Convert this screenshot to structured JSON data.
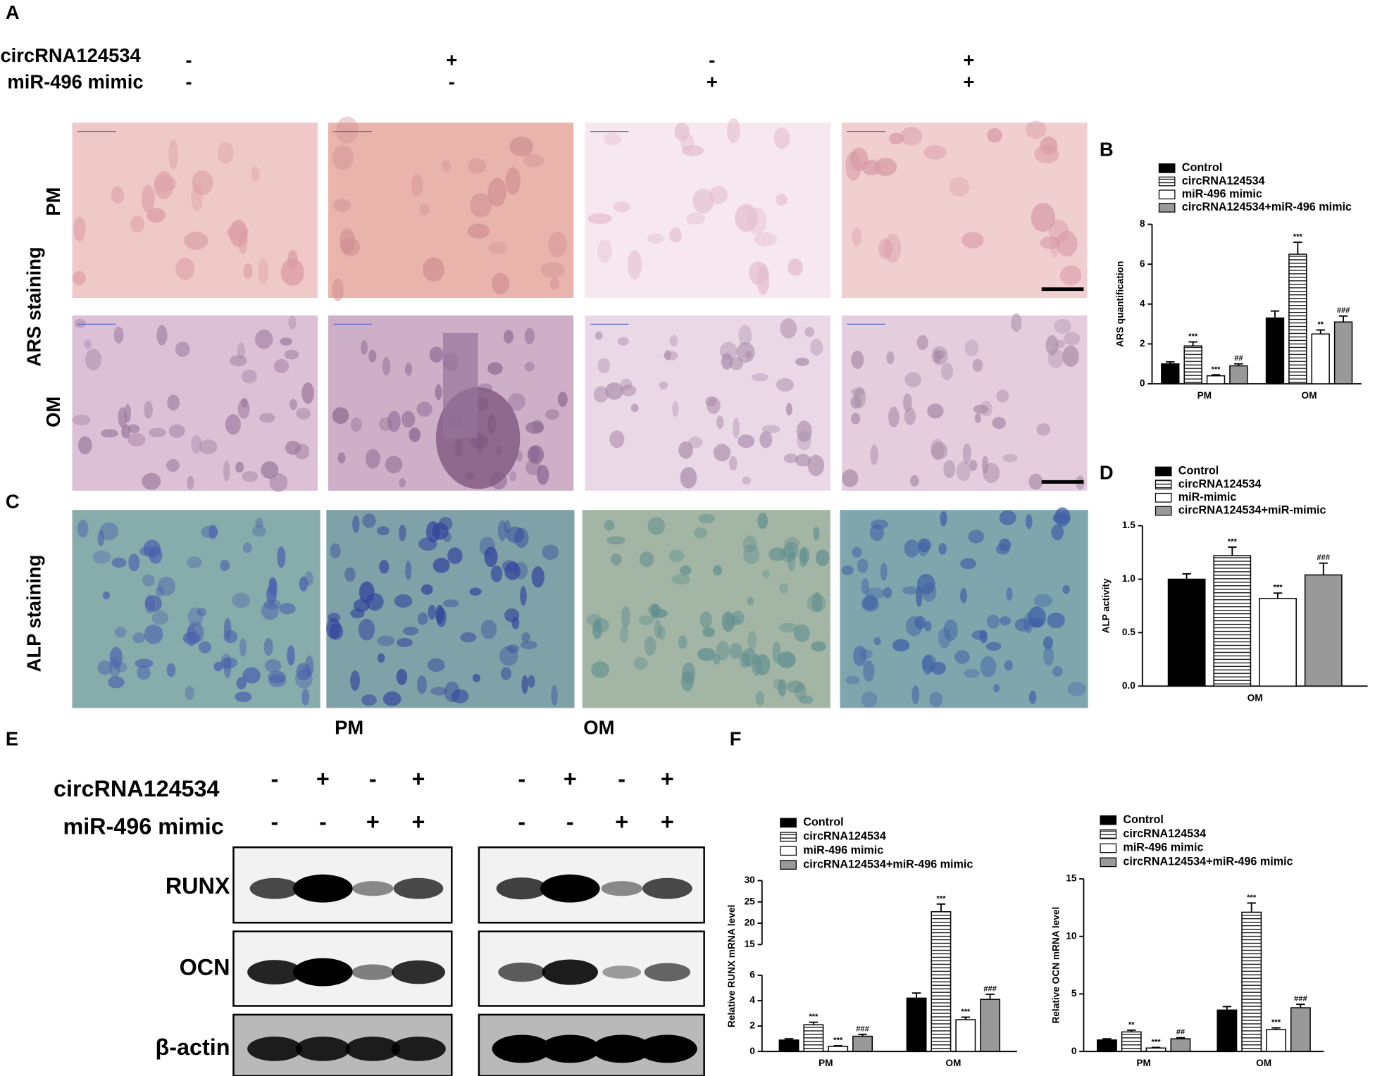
{
  "panel_letters": [
    "A",
    "B",
    "C",
    "D",
    "E",
    "F"
  ],
  "panel_a": {
    "labels": [
      "circRNA124534",
      "miR-496 mimic"
    ],
    "signs": [
      [
        "-",
        "+",
        "-",
        "+"
      ],
      [
        "-",
        "-",
        "+",
        "+"
      ]
    ],
    "stain": "ARS staining",
    "rows": [
      "PM",
      "OM"
    ]
  },
  "panel_c": {
    "stain": "ALP staining",
    "columns": [
      "PM",
      "OM"
    ]
  },
  "panel_e": {
    "labels": [
      "circRNA124534",
      "miR-496 mimic"
    ],
    "signs": [
      [
        "-",
        "+",
        "-",
        "+",
        "-",
        "+",
        "-",
        "+"
      ],
      [
        "-",
        "-",
        "+",
        "+",
        "-",
        "-",
        "+",
        "+"
      ]
    ],
    "blots": [
      "RUNX",
      "OCN",
      "β-actin"
    ]
  },
  "chart_data": [
    {
      "type": "bar",
      "ylabel": "ARS quantification",
      "categories": [
        "PM",
        "OM"
      ],
      "ylim": [
        0,
        8
      ],
      "yticks": [
        0,
        2,
        4,
        6,
        8
      ],
      "series": [
        {
          "name": "Control",
          "color": "#000000",
          "values": [
            1.0,
            3.3
          ],
          "errors": [
            0.1,
            0.35
          ]
        },
        {
          "name": "circRNA124534",
          "color": "#ffffff",
          "hatch": true,
          "values": [
            1.9,
            6.5
          ],
          "errors": [
            0.2,
            0.6
          ],
          "significance": [
            "***",
            "***"
          ]
        },
        {
          "name": "miR-496 mimic",
          "color": "#ffffff",
          "values": [
            0.4,
            2.5
          ],
          "errors": [
            0.05,
            0.2
          ],
          "significance": [
            "***",
            "**"
          ]
        },
        {
          "name": "circRNA124534+miR-496 mimic",
          "color": "#999999",
          "values": [
            0.9,
            3.1
          ],
          "errors": [
            0.1,
            0.3
          ],
          "significance": [
            "##",
            "###"
          ]
        }
      ]
    },
    {
      "type": "bar",
      "ylabel": "ALP activity",
      "categories": [
        "OM"
      ],
      "ylim": [
        0,
        1.5
      ],
      "yticks": [
        {
          "value": 0,
          "label": "0.0"
        },
        {
          "value": 0.5,
          "label": "0.5"
        },
        {
          "value": 1,
          "label": "1.0"
        },
        {
          "value": 1.5,
          "label": "1.5"
        }
      ],
      "series": [
        {
          "name": "Control",
          "color": "#000000",
          "values": [
            1.0
          ],
          "errors": [
            0.05
          ]
        },
        {
          "name": "circRNA124534",
          "color": "#ffffff",
          "hatch": true,
          "values": [
            1.22
          ],
          "errors": [
            0.08
          ],
          "significance": [
            "***"
          ]
        },
        {
          "name": "miR-mimic",
          "color": "#ffffff",
          "values": [
            0.82
          ],
          "errors": [
            0.05
          ],
          "significance": [
            "***"
          ]
        },
        {
          "name": "circRNA124534+miR-mimic",
          "color": "#999999",
          "values": [
            1.04
          ],
          "errors": [
            0.11
          ],
          "significance": [
            "###"
          ]
        }
      ]
    },
    {
      "type": "bar",
      "ylabel": "Relative RUNX mRNA level",
      "categories": [
        "PM",
        "OM"
      ],
      "ylim": [
        0,
        30
      ],
      "ybreak": [
        6,
        15
      ],
      "yticks": [
        0,
        2,
        4,
        6,
        15,
        20,
        25,
        30
      ],
      "series": [
        {
          "name": "Control",
          "color": "#000000",
          "values": [
            0.9,
            4.2
          ],
          "errors": [
            0.1,
            0.4
          ]
        },
        {
          "name": "circRNA124534",
          "color": "#ffffff",
          "hatch": true,
          "values": [
            2.1,
            22.7
          ],
          "errors": [
            0.2,
            1.8
          ],
          "significance": [
            "***",
            "***"
          ]
        },
        {
          "name": "miR-496 mimic",
          "color": "#ffffff",
          "values": [
            0.4,
            2.5
          ],
          "errors": [
            0.05,
            0.2
          ],
          "significance": [
            "***",
            "***"
          ]
        },
        {
          "name": "circRNA124534+miR-496 mimic",
          "color": "#999999",
          "values": [
            1.2,
            4.1
          ],
          "errors": [
            0.15,
            0.4
          ],
          "significance": [
            "###",
            "###"
          ]
        }
      ]
    },
    {
      "type": "bar",
      "ylabel": "Relative OCN mRNA level",
      "categories": [
        "PM",
        "OM"
      ],
      "ylim": [
        0,
        15
      ],
      "yticks": [
        0,
        5,
        10,
        15
      ],
      "series": [
        {
          "name": "Control",
          "color": "#000000",
          "values": [
            1.0,
            3.6
          ],
          "errors": [
            0.1,
            0.3
          ]
        },
        {
          "name": "circRNA124534",
          "color": "#ffffff",
          "hatch": true,
          "values": [
            1.7,
            12.1
          ],
          "errors": [
            0.15,
            0.8
          ],
          "significance": [
            "**",
            "***"
          ]
        },
        {
          "name": "miR-496 mimic",
          "color": "#ffffff",
          "values": [
            0.3,
            1.9
          ],
          "errors": [
            0.05,
            0.15
          ],
          "significance": [
            "***",
            "***"
          ]
        },
        {
          "name": "circRNA124534+miR-496 mimic",
          "color": "#999999",
          "values": [
            1.1,
            3.8
          ],
          "errors": [
            0.1,
            0.3
          ],
          "significance": [
            "##",
            "###"
          ]
        }
      ]
    }
  ]
}
